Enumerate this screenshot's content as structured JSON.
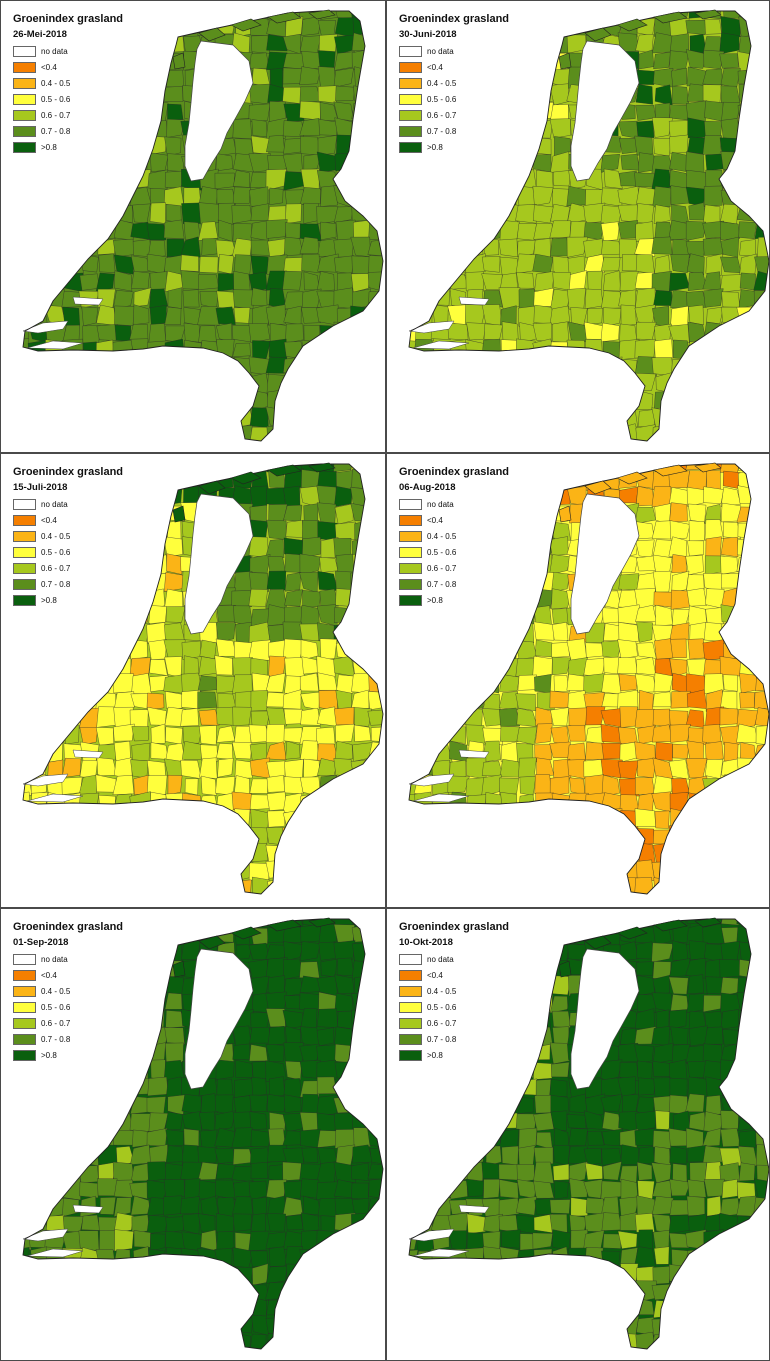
{
  "legend_classes": [
    {
      "label": "no data",
      "color": "#ffffff"
    },
    {
      "label": "<0.4",
      "color": "#f57f00"
    },
    {
      "label": "0.4 - 0.5",
      "color": "#fbb416"
    },
    {
      "label": "0.5 - 0.6",
      "color": "#ffff3c"
    },
    {
      "label": "0.6 - 0.7",
      "color": "#a6c81e"
    },
    {
      "label": "0.7 - 0.8",
      "color": "#5b8e1c"
    },
    {
      "label": ">0.8",
      "color": "#0a5f0e"
    }
  ],
  "panels": [
    {
      "title": "Groenindex grasland",
      "date": "26-Mei-2018",
      "zones": {
        "north": 5,
        "middle": 5,
        "east": 5,
        "south": 5,
        "west": 5,
        "islands": 5
      }
    },
    {
      "title": "Groenindex grasland",
      "date": "30-Juni-2018",
      "zones": {
        "north": 5,
        "middle": 4,
        "east": 5,
        "south": 4,
        "west": 4,
        "islands": 5
      }
    },
    {
      "title": "Groenindex grasland",
      "date": "15-Juli-2018",
      "zones": {
        "north": 5,
        "middle": 4,
        "east": 3,
        "south": 3,
        "west": 3,
        "islands": 6
      }
    },
    {
      "title": "Groenindex grasland",
      "date": "06-Aug-2018",
      "zones": {
        "north": 3,
        "middle": 3,
        "east": 2,
        "south": 2,
        "west": 4,
        "islands": 2
      }
    },
    {
      "title": "Groenindex grasland",
      "date": "01-Sep-2018",
      "zones": {
        "north": 6,
        "middle": 6,
        "east": 6,
        "south": 6,
        "west": 5,
        "islands": 6
      }
    },
    {
      "title": "Groenindex grasland",
      "date": "10-Okt-2018",
      "zones": {
        "north": 6,
        "middle": 6,
        "east": 5,
        "south": 5,
        "west": 5,
        "islands": 6
      }
    }
  ]
}
